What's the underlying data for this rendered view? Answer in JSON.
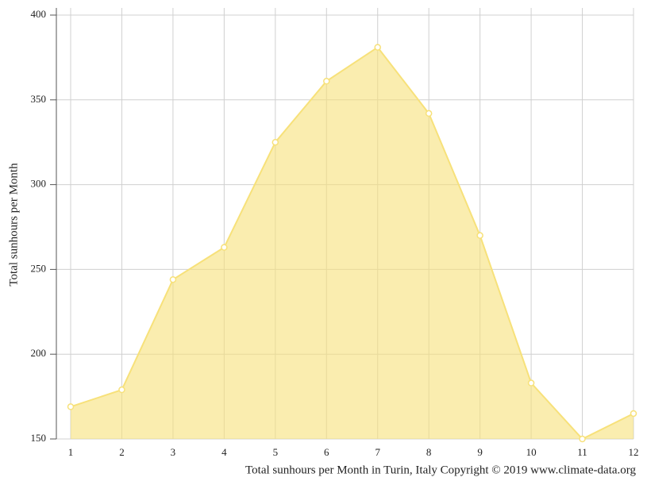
{
  "chart_data": {
    "type": "area",
    "y_label": "Total sunhours per Month",
    "caption": "Total sunhours per Month in Turin, Italy Copyright © 2019 www.climate-data.org",
    "x": [
      1,
      2,
      3,
      4,
      5,
      6,
      7,
      8,
      9,
      10,
      11,
      12
    ],
    "xlim": [
      1,
      12
    ],
    "xticks": [
      1,
      2,
      3,
      4,
      5,
      6,
      7,
      8,
      9,
      10,
      11,
      12
    ],
    "ylim": [
      150,
      400
    ],
    "yticks": [
      150,
      200,
      250,
      300,
      350,
      400
    ],
    "grid": true,
    "series": [
      {
        "color": "#f7e17a",
        "values": [
          169,
          179,
          244,
          263,
          325,
          361,
          381,
          342,
          270,
          183,
          150,
          165
        ]
      }
    ]
  }
}
